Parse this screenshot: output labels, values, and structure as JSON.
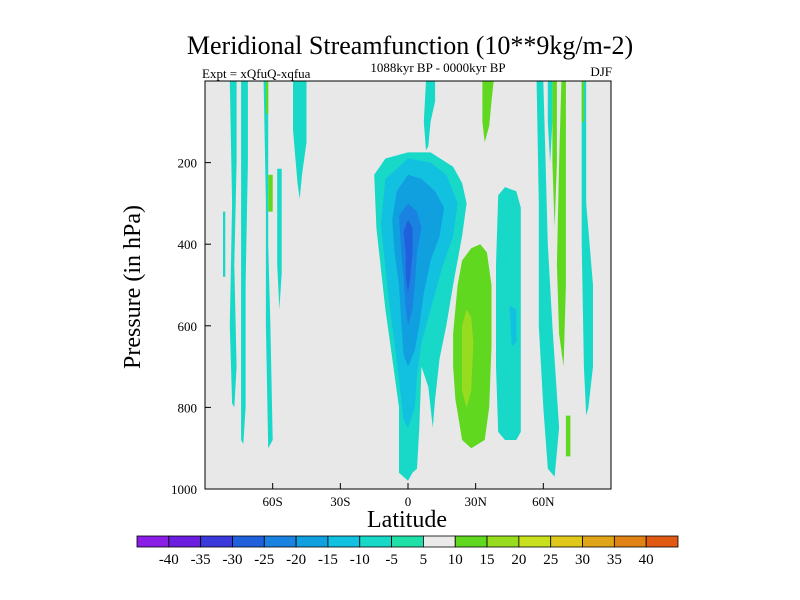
{
  "chart_data": {
    "type": "heatmap",
    "title": "Meridional Streamfunction (10**9kg/m-2)",
    "left_string": "Expt = xQfuQ-xqfua",
    "center_string": "1088kyr BP - 0000kyr BP",
    "right_string": "DJF",
    "xlabel": "Latitude",
    "ylabel": "Pressure (in hPa)",
    "xlim": [
      -90,
      90
    ],
    "ylim": [
      0,
      1000
    ],
    "y_inverted": true,
    "x_ticks": [
      {
        "value": -60,
        "label": "60S"
      },
      {
        "value": -30,
        "label": "30S"
      },
      {
        "value": 0,
        "label": "0"
      },
      {
        "value": 30,
        "label": "30N"
      },
      {
        "value": 60,
        "label": "60N"
      }
    ],
    "y_ticks": [
      {
        "value": 200,
        "label": "200"
      },
      {
        "value": 400,
        "label": "400"
      },
      {
        "value": 600,
        "label": "600"
      },
      {
        "value": 800,
        "label": "800"
      },
      {
        "value": 1000,
        "label": "1000"
      }
    ],
    "background_color": "#e8e8e8",
    "colorbar": {
      "levels": [
        "-40",
        "-35",
        "-30",
        "-25",
        "-20",
        "-15",
        "-10",
        "-5",
        "5",
        "10",
        "15",
        "20",
        "25",
        "30",
        "35",
        "40"
      ],
      "colors": [
        "#8a1ee6",
        "#6b1ee0",
        "#3a3adc",
        "#2060dc",
        "#1a82e0",
        "#10a0e0",
        "#12c0e0",
        "#18d8c8",
        "#20e0a8",
        "#eaeaea",
        "#60d820",
        "#98dc20",
        "#c8e01e",
        "#e0c81a",
        "#e0a418",
        "#e08216",
        "#e05a14"
      ]
    },
    "contours": [
      {
        "color": "#18d8c8",
        "points": [
          [
            -79,
            0
          ],
          [
            -76,
            0
          ],
          [
            -76,
            200
          ],
          [
            -77,
            450
          ],
          [
            -76,
            700
          ],
          [
            -77,
            800
          ],
          [
            -78,
            790
          ],
          [
            -79,
            600
          ],
          [
            -78,
            300
          ]
        ]
      },
      {
        "color": "#18d8c8",
        "points": [
          [
            -74,
            0
          ],
          [
            -71,
            0
          ],
          [
            -71,
            200
          ],
          [
            -72,
            500
          ],
          [
            -72,
            800
          ],
          [
            -73,
            890
          ],
          [
            -74,
            880
          ],
          [
            -74,
            500
          ]
        ]
      },
      {
        "color": "#18d8c8",
        "points": [
          [
            -64,
            0
          ],
          [
            -62,
            0
          ],
          [
            -62,
            400
          ],
          [
            -61,
            600
          ],
          [
            -60,
            880
          ],
          [
            -62,
            900
          ],
          [
            -63,
            600
          ],
          [
            -63,
            300
          ]
        ]
      },
      {
        "color": "#18d8c8",
        "points": [
          [
            -51,
            0
          ],
          [
            -45,
            0
          ],
          [
            -45,
            150
          ],
          [
            -47,
            230
          ],
          [
            -48,
            290
          ],
          [
            -49,
            250
          ],
          [
            -51,
            120
          ]
        ]
      },
      {
        "color": "#18d8c8",
        "points": [
          [
            -82,
            320
          ],
          [
            -81,
            320
          ],
          [
            -81,
            480
          ],
          [
            -82,
            480
          ]
        ]
      },
      {
        "color": "#18d8c8",
        "points": [
          [
            -58,
            215
          ],
          [
            -56,
            215
          ],
          [
            -56,
            470
          ],
          [
            -57,
            560
          ],
          [
            -58,
            450
          ]
        ]
      },
      {
        "color": "#18d8c8",
        "points": [
          [
            -15,
            230
          ],
          [
            -10,
            190
          ],
          [
            0,
            175
          ],
          [
            10,
            175
          ],
          [
            20,
            210
          ],
          [
            24,
            250
          ],
          [
            26,
            300
          ],
          [
            24,
            380
          ],
          [
            20,
            500
          ],
          [
            17,
            600
          ],
          [
            14,
            680
          ],
          [
            12,
            780
          ],
          [
            11,
            850
          ],
          [
            9,
            750
          ],
          [
            6,
            700
          ],
          [
            5,
            850
          ],
          [
            4,
            950
          ],
          [
            2,
            960
          ],
          [
            0,
            980
          ],
          [
            -4,
            960
          ],
          [
            -4,
            800
          ],
          [
            -6,
            720
          ],
          [
            -8,
            640
          ],
          [
            -10,
            560
          ],
          [
            -12,
            460
          ],
          [
            -14,
            360
          ]
        ]
      },
      {
        "color": "#18d8c8",
        "points": [
          [
            8,
            0
          ],
          [
            12,
            0
          ],
          [
            12,
            50
          ],
          [
            10,
            100
          ],
          [
            9,
            160
          ],
          [
            8,
            170
          ],
          [
            7,
            100
          ]
        ]
      },
      {
        "color": "#18d8c8",
        "points": [
          [
            40,
            280
          ],
          [
            43,
            260
          ],
          [
            48,
            270
          ],
          [
            50,
            310
          ],
          [
            50,
            480
          ],
          [
            50,
            700
          ],
          [
            50,
            860
          ],
          [
            48,
            880
          ],
          [
            43,
            880
          ],
          [
            40,
            860
          ],
          [
            39,
            700
          ],
          [
            39,
            450
          ]
        ]
      },
      {
        "color": "#18d8c8",
        "points": [
          [
            57,
            0
          ],
          [
            60,
            0
          ],
          [
            61,
            200
          ],
          [
            62,
            400
          ],
          [
            64,
            600
          ],
          [
            67,
            850
          ],
          [
            65,
            970
          ],
          [
            62,
            950
          ],
          [
            60,
            800
          ],
          [
            58,
            600
          ],
          [
            58,
            300
          ]
        ]
      },
      {
        "color": "#18d8c8",
        "points": [
          [
            62,
            0
          ],
          [
            64,
            0
          ],
          [
            64,
            100
          ],
          [
            63,
            200
          ],
          [
            62,
            100
          ]
        ]
      },
      {
        "color": "#18d8c8",
        "points": [
          [
            77,
            0
          ],
          [
            79,
            0
          ],
          [
            79,
            300
          ],
          [
            82,
            500
          ],
          [
            82,
            700
          ],
          [
            80,
            800
          ],
          [
            79,
            820
          ],
          [
            78,
            700
          ],
          [
            77,
            400
          ]
        ]
      },
      {
        "color": "#12c0e0",
        "points": [
          [
            -10,
            240
          ],
          [
            0,
            190
          ],
          [
            10,
            200
          ],
          [
            17,
            230
          ],
          [
            22,
            300
          ],
          [
            20,
            380
          ],
          [
            15,
            460
          ],
          [
            10,
            560
          ],
          [
            6,
            640
          ],
          [
            4,
            720
          ],
          [
            3,
            800
          ],
          [
            0,
            850
          ],
          [
            -2,
            830
          ],
          [
            -4,
            730
          ],
          [
            -6,
            640
          ],
          [
            -8,
            560
          ],
          [
            -10,
            460
          ],
          [
            -12,
            350
          ]
        ]
      },
      {
        "color": "#10a0e0",
        "points": [
          [
            -5,
            270
          ],
          [
            0,
            230
          ],
          [
            6,
            240
          ],
          [
            12,
            270
          ],
          [
            16,
            310
          ],
          [
            14,
            380
          ],
          [
            10,
            440
          ],
          [
            7,
            520
          ],
          [
            5,
            600
          ],
          [
            3,
            660
          ],
          [
            0,
            700
          ],
          [
            -2,
            670
          ],
          [
            -3,
            590
          ],
          [
            -4,
            500
          ],
          [
            -6,
            420
          ],
          [
            -7,
            340
          ]
        ]
      },
      {
        "color": "#1a82e0",
        "points": [
          [
            -4,
            330
          ],
          [
            0,
            300
          ],
          [
            4,
            320
          ],
          [
            6,
            360
          ],
          [
            4,
            420
          ],
          [
            3,
            500
          ],
          [
            2,
            560
          ],
          [
            0,
            600
          ],
          [
            -1,
            560
          ],
          [
            -2,
            480
          ],
          [
            -3,
            420
          ]
        ]
      },
      {
        "color": "#2060dc",
        "points": [
          [
            -2,
            370
          ],
          [
            0,
            340
          ],
          [
            2,
            360
          ],
          [
            2,
            420
          ],
          [
            1,
            480
          ],
          [
            0,
            520
          ],
          [
            -1,
            480
          ],
          [
            -1,
            420
          ]
        ]
      },
      {
        "color": "#12c0e0",
        "points": [
          [
            45,
            550
          ],
          [
            48,
            560
          ],
          [
            48,
            640
          ],
          [
            46,
            650
          ]
        ]
      },
      {
        "color": "#60d820",
        "points": [
          [
            -63,
            0
          ],
          [
            -62,
            0
          ],
          [
            -62,
            80
          ],
          [
            -63,
            80
          ]
        ]
      },
      {
        "color": "#60d820",
        "points": [
          [
            -62,
            230
          ],
          [
            -60,
            230
          ],
          [
            -60,
            320
          ],
          [
            -62,
            320
          ]
        ]
      },
      {
        "color": "#60d820",
        "points": [
          [
            20,
            620
          ],
          [
            22,
            500
          ],
          [
            24,
            440
          ],
          [
            28,
            410
          ],
          [
            32,
            400
          ],
          [
            35,
            420
          ],
          [
            37,
            500
          ],
          [
            37,
            650
          ],
          [
            36,
            800
          ],
          [
            34,
            880
          ],
          [
            28,
            900
          ],
          [
            24,
            880
          ],
          [
            21,
            780
          ],
          [
            20,
            700
          ]
        ]
      },
      {
        "color": "#98dc20",
        "points": [
          [
            24,
            600
          ],
          [
            26,
            560
          ],
          [
            28,
            580
          ],
          [
            29,
            640
          ],
          [
            28,
            760
          ],
          [
            26,
            800
          ],
          [
            24,
            760
          ]
        ]
      },
      {
        "color": "#60d820",
        "points": [
          [
            33,
            0
          ],
          [
            38,
            0
          ],
          [
            37,
            50
          ],
          [
            36,
            110
          ],
          [
            34,
            150
          ],
          [
            33,
            100
          ]
        ]
      },
      {
        "color": "#60d820",
        "points": [
          [
            64,
            0
          ],
          [
            66,
            0
          ],
          [
            66,
            200
          ],
          [
            65,
            360
          ],
          [
            64,
            200
          ]
        ]
      },
      {
        "color": "#60d820",
        "points": [
          [
            68,
            0
          ],
          [
            70,
            0
          ],
          [
            70,
            300
          ],
          [
            70,
            500
          ],
          [
            69,
            700
          ],
          [
            67,
            620
          ],
          [
            66,
            450
          ],
          [
            67,
            200
          ]
        ]
      },
      {
        "color": "#60d820",
        "points": [
          [
            77,
            0
          ],
          [
            78,
            0
          ],
          [
            78,
            100
          ],
          [
            77,
            100
          ]
        ]
      },
      {
        "color": "#60d820",
        "points": [
          [
            70,
            820
          ],
          [
            72,
            820
          ],
          [
            72,
            920
          ],
          [
            70,
            920
          ]
        ]
      }
    ]
  }
}
